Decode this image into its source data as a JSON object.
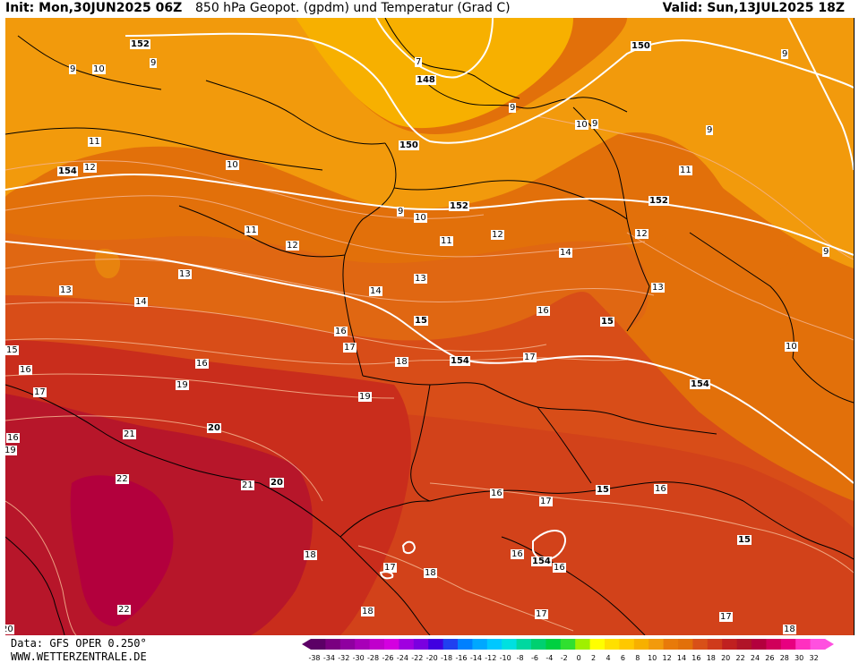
{
  "header": {
    "init": "Init: Mon,30JUN2025 06Z",
    "title": "850 hPa Geopot. (gpdm) und Temperatur (Grad C)",
    "valid": "Valid: Sun,13JUL2025 18Z"
  },
  "footer": {
    "data_source": "Data: GFS OPER 0.250°",
    "website": "WWW.WETTERZENTRALE.DE"
  },
  "colors": {
    "ocean_orange": "#f29a0c",
    "cold_yellow": "#f7b000",
    "mid_orange": "#e2700a",
    "warm_red": "#cf3a1b",
    "hot_red": "#b01428",
    "very_hot": "#b3003d",
    "geopot_line": "#ffffff",
    "border_line": "#000000"
  },
  "colorbar": {
    "ticks": [
      "-38",
      "-34",
      "-32",
      "-30",
      "-28",
      "-26",
      "-24",
      "-22",
      "-20",
      "-18",
      "-16",
      "-14",
      "-12",
      "-10",
      "-8",
      "-6",
      "-4",
      "-2",
      "0",
      "2",
      "4",
      "6",
      "8",
      "10",
      "12",
      "14",
      "16",
      "18",
      "20",
      "22",
      "24",
      "26",
      "28",
      "30",
      "32"
    ],
    "colors": [
      "#5c0066",
      "#7a0080",
      "#8f00a0",
      "#a800b8",
      "#c000cc",
      "#d400e0",
      "#a000e0",
      "#7a00e0",
      "#4000e0",
      "#2040f0",
      "#0080ff",
      "#00a8ff",
      "#00c8ff",
      "#00e0e0",
      "#00d8a0",
      "#00d070",
      "#00d040",
      "#30e030",
      "#a0f000",
      "#ffff00",
      "#ffe000",
      "#ffc800",
      "#f7b000",
      "#f29a0c",
      "#e87a0a",
      "#e2700a",
      "#d85018",
      "#cf3a1b",
      "#c02020",
      "#b01428",
      "#b3003d",
      "#d0005a",
      "#e80080",
      "#ff30c0",
      "#ff50e0"
    ]
  },
  "geopotential_labels": [
    {
      "text": "152"
    },
    {
      "text": "148"
    },
    {
      "text": "150"
    },
    {
      "text": "150"
    },
    {
      "text": "154"
    },
    {
      "text": "152"
    },
    {
      "text": "152"
    },
    {
      "text": "15"
    },
    {
      "text": "15"
    },
    {
      "text": "154"
    },
    {
      "text": "154"
    },
    {
      "text": "20"
    },
    {
      "text": "20"
    },
    {
      "text": "15"
    },
    {
      "text": "15"
    },
    {
      "text": "154"
    }
  ],
  "temperature_labels": [
    {
      "text": "9"
    },
    {
      "text": "10"
    },
    {
      "text": "9"
    },
    {
      "text": "7"
    },
    {
      "text": "9"
    },
    {
      "text": "9"
    },
    {
      "text": "9"
    },
    {
      "text": "10"
    },
    {
      "text": "9"
    },
    {
      "text": "11"
    },
    {
      "text": "12"
    },
    {
      "text": "10"
    },
    {
      "text": "11"
    },
    {
      "text": "9"
    },
    {
      "text": "10"
    },
    {
      "text": "11"
    },
    {
      "text": "12"
    },
    {
      "text": "12"
    },
    {
      "text": "9"
    },
    {
      "text": "11"
    },
    {
      "text": "12"
    },
    {
      "text": "13"
    },
    {
      "text": "13"
    },
    {
      "text": "14"
    },
    {
      "text": "14"
    },
    {
      "text": "14"
    },
    {
      "text": "13"
    },
    {
      "text": "13"
    },
    {
      "text": "15"
    },
    {
      "text": "16"
    },
    {
      "text": "16"
    },
    {
      "text": "17"
    },
    {
      "text": "17"
    },
    {
      "text": "18"
    },
    {
      "text": "17"
    },
    {
      "text": "10"
    },
    {
      "text": "16"
    },
    {
      "text": "19"
    },
    {
      "text": "19"
    },
    {
      "text": "16"
    },
    {
      "text": "21"
    },
    {
      "text": "19"
    },
    {
      "text": "22"
    },
    {
      "text": "21"
    },
    {
      "text": "16"
    },
    {
      "text": "17"
    },
    {
      "text": "16"
    },
    {
      "text": "16"
    },
    {
      "text": "18"
    },
    {
      "text": "17"
    },
    {
      "text": "18"
    },
    {
      "text": "16"
    },
    {
      "text": "22"
    },
    {
      "text": "18"
    },
    {
      "text": "17"
    },
    {
      "text": "16"
    },
    {
      "text": "17"
    },
    {
      "text": "18"
    },
    {
      "text": "20"
    }
  ]
}
